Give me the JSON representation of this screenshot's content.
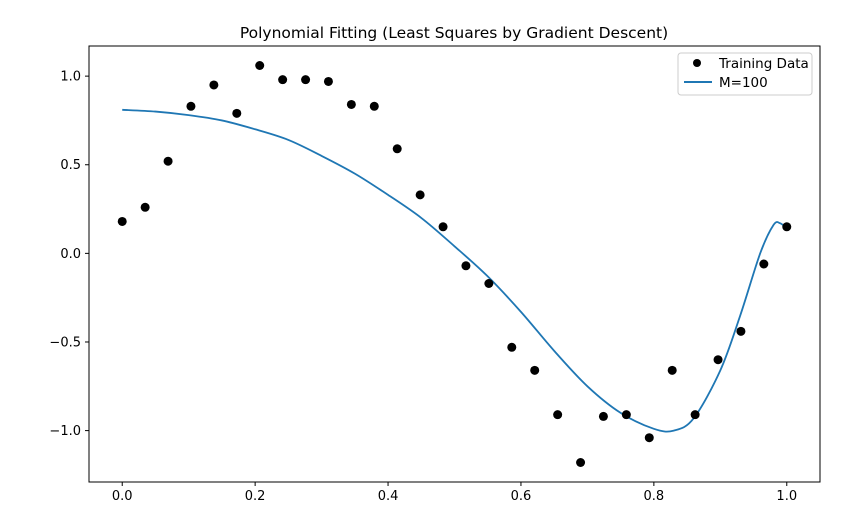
{
  "chart_data": {
    "type": "scatter",
    "title": "Polynomial Fitting (Least Squares by Gradient Descent)",
    "xlabel": "",
    "ylabel": "",
    "xlim": [
      -0.05,
      1.05
    ],
    "ylim": [
      -1.29,
      1.17
    ],
    "xticks": [
      0.0,
      0.2,
      0.4,
      0.6,
      0.8,
      1.0
    ],
    "xtick_labels": [
      "0.0",
      "0.2",
      "0.4",
      "0.6",
      "0.8",
      "1.0"
    ],
    "yticks": [
      1.0,
      0.5,
      0.0,
      -0.5,
      -1.0
    ],
    "ytick_labels": [
      "1.0",
      "0.5",
      "0.0",
      "−0.5",
      "−1.0"
    ],
    "grid": false,
    "legend_position": "top-right",
    "colors": {
      "scatter": "#000000",
      "line": "#1f77b4",
      "axes": "#000000"
    },
    "series": [
      {
        "name": "Training Data",
        "kind": "scatter",
        "x": [
          0.0,
          0.0345,
          0.069,
          0.1034,
          0.1379,
          0.1724,
          0.2069,
          0.2414,
          0.2759,
          0.3103,
          0.3448,
          0.3793,
          0.4138,
          0.4483,
          0.4828,
          0.5172,
          0.5517,
          0.5862,
          0.6207,
          0.6552,
          0.6897,
          0.7241,
          0.7586,
          0.7931,
          0.8276,
          0.8621,
          0.8966,
          0.931,
          0.9655,
          1.0
        ],
        "y": [
          0.18,
          0.26,
          0.52,
          0.83,
          0.95,
          0.79,
          1.06,
          0.98,
          0.98,
          0.97,
          0.84,
          0.83,
          0.59,
          0.33,
          0.15,
          -0.07,
          -0.17,
          -0.53,
          -0.66,
          -0.91,
          -1.18,
          -0.92,
          -0.91,
          -1.04,
          -0.66,
          -0.91,
          -0.6,
          -0.44,
          -0.06,
          0.15
        ]
      },
      {
        "name": "M=100",
        "kind": "line",
        "x": [
          0.0,
          0.05,
          0.1,
          0.15,
          0.2,
          0.25,
          0.3,
          0.35,
          0.4,
          0.45,
          0.5,
          0.55,
          0.6,
          0.65,
          0.7,
          0.75,
          0.8,
          0.83,
          0.86,
          0.9,
          0.93,
          0.96,
          0.98,
          0.99,
          1.0
        ],
        "y": [
          0.81,
          0.8,
          0.78,
          0.75,
          0.7,
          0.64,
          0.55,
          0.45,
          0.33,
          0.2,
          0.04,
          -0.13,
          -0.33,
          -0.55,
          -0.75,
          -0.9,
          -0.99,
          -1.0,
          -0.93,
          -0.66,
          -0.35,
          0.0,
          0.16,
          0.17,
          0.14
        ]
      }
    ]
  }
}
